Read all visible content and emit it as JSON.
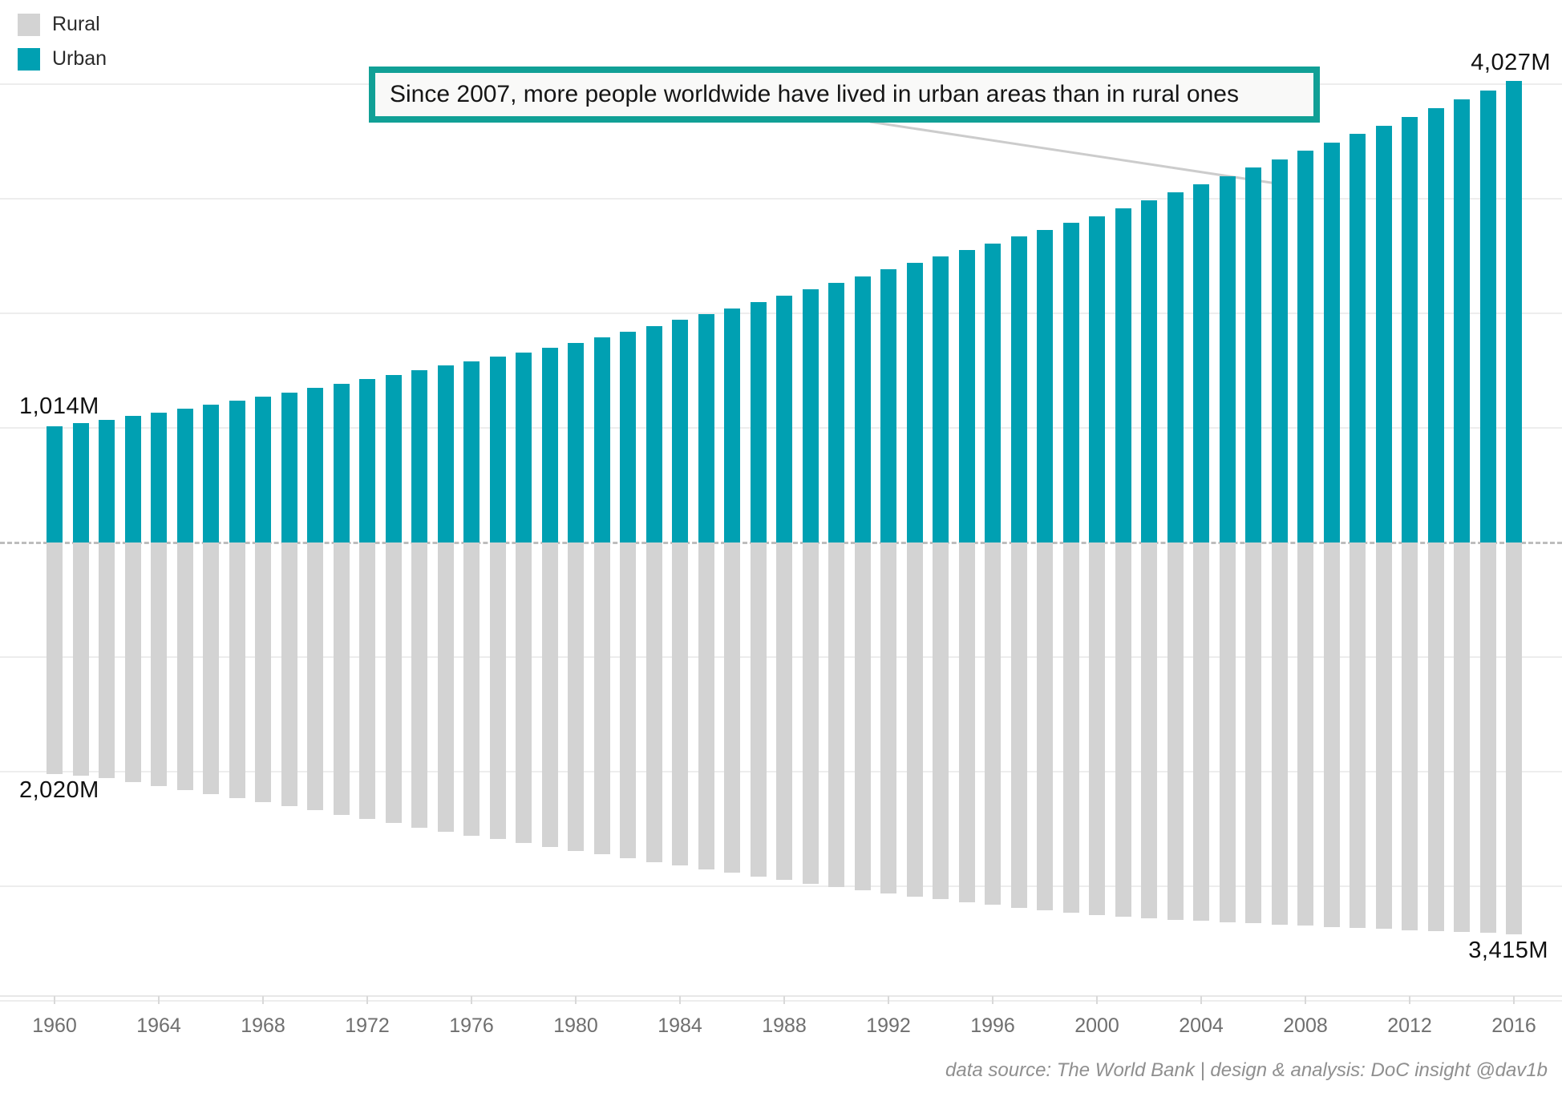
{
  "legend": {
    "items": [
      {
        "label": "Rural",
        "color": "#d3d3d3"
      },
      {
        "label": "Urban",
        "color": "#00a0b2"
      }
    ]
  },
  "callout": {
    "text": "Since 2007, more people worldwide have lived in urban areas than in rural ones",
    "border_color": "#11a096",
    "points_to_year": 2007
  },
  "value_labels": {
    "urban_start": "1,014M",
    "urban_end": "4,027M",
    "rural_start": "2,020M",
    "rural_end": "3,415M"
  },
  "footer": {
    "credit": "data source: The World Bank | design & analysis: DoC insight @dav1b"
  },
  "chart_data": {
    "type": "bar",
    "orientation": "diverging-vertical",
    "unit": "millions of people",
    "title": "",
    "xlabel": "",
    "ylabel": "",
    "grid": true,
    "gridlines_M": [
      1000,
      2000,
      3000,
      4000
    ],
    "baseline_M": 0,
    "x_ticks": [
      1960,
      1964,
      1968,
      1972,
      1976,
      1980,
      1984,
      1988,
      1992,
      1996,
      2000,
      2004,
      2008,
      2012,
      2016
    ],
    "x": [
      1960,
      1961,
      1962,
      1963,
      1964,
      1965,
      1966,
      1967,
      1968,
      1969,
      1970,
      1971,
      1972,
      1973,
      1974,
      1975,
      1976,
      1977,
      1978,
      1979,
      1980,
      1981,
      1982,
      1983,
      1984,
      1985,
      1986,
      1987,
      1988,
      1989,
      1990,
      1991,
      1992,
      1993,
      1994,
      1995,
      1996,
      1997,
      1998,
      1999,
      2000,
      2001,
      2002,
      2003,
      2004,
      2005,
      2006,
      2007,
      2008,
      2009,
      2010,
      2011,
      2012,
      2013,
      2014,
      2015,
      2016
    ],
    "series": [
      {
        "name": "Urban",
        "direction": "up",
        "color": "#00a0b2",
        "values": [
          1014,
          1041,
          1069,
          1102,
          1134,
          1167,
          1201,
          1237,
          1273,
          1310,
          1348,
          1387,
          1425,
          1464,
          1503,
          1542,
          1581,
          1620,
          1659,
          1700,
          1742,
          1790,
          1839,
          1889,
          1940,
          1991,
          2044,
          2099,
          2154,
          2210,
          2267,
          2323,
          2380,
          2437,
          2494,
          2552,
          2610,
          2668,
          2727,
          2786,
          2845,
          2914,
          2983,
          3053,
          3124,
          3195,
          3267,
          3340,
          3414,
          3488,
          3564,
          3637,
          3713,
          3788,
          3865,
          3941,
          4027
        ]
      },
      {
        "name": "Rural",
        "direction": "down",
        "color": "#d3d3d3",
        "values": [
          2020,
          2031,
          2057,
          2091,
          2124,
          2158,
          2193,
          2227,
          2262,
          2299,
          2336,
          2374,
          2412,
          2449,
          2486,
          2521,
          2555,
          2588,
          2622,
          2656,
          2691,
          2721,
          2753,
          2785,
          2816,
          2848,
          2880,
          2912,
          2944,
          2975,
          3006,
          3034,
          3061,
          3087,
          3113,
          3138,
          3161,
          3185,
          3206,
          3227,
          3248,
          3262,
          3275,
          3288,
          3300,
          3311,
          3322,
          3332,
          3342,
          3352,
          3361,
          3370,
          3379,
          3388,
          3397,
          3406,
          3415
        ]
      }
    ]
  }
}
